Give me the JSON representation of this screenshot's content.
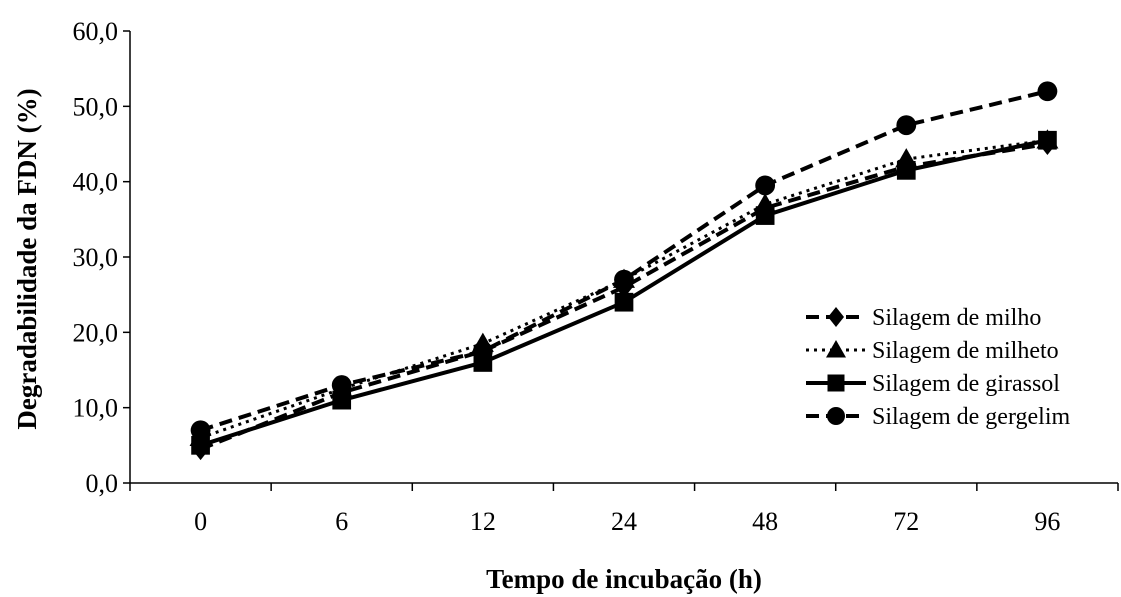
{
  "chart_data": {
    "type": "line",
    "title": "",
    "xlabel": "Tempo de incubação (h)",
    "ylabel": "Degradabilidade da FDN (%)",
    "categories": [
      "0",
      "6",
      "12",
      "24",
      "48",
      "72",
      "96"
    ],
    "ylim": [
      0,
      60
    ],
    "yticks": [
      "0,0",
      "10,0",
      "20,0",
      "30,0",
      "40,0",
      "50,0",
      "60,0"
    ],
    "grid": false,
    "legend_position": "right",
    "series": [
      {
        "name": "Silagem de milho",
        "marker": "diamond",
        "dash": "dashed",
        "values": [
          4.5,
          12.0,
          17.5,
          26.0,
          36.5,
          42.0,
          45.0
        ]
      },
      {
        "name": "Silagem de milheto",
        "marker": "triangle",
        "dash": "dotted",
        "values": [
          6.0,
          12.5,
          18.5,
          27.0,
          37.0,
          43.0,
          45.5
        ]
      },
      {
        "name": "Silagem de girassol",
        "marker": "square",
        "dash": "solid",
        "values": [
          5.0,
          11.0,
          16.0,
          24.0,
          35.5,
          41.5,
          45.5
        ]
      },
      {
        "name": "Silagem de gergelim",
        "marker": "circle",
        "dash": "dashed",
        "values": [
          7.0,
          13.0,
          17.5,
          27.0,
          39.5,
          47.5,
          52.0
        ]
      }
    ]
  }
}
